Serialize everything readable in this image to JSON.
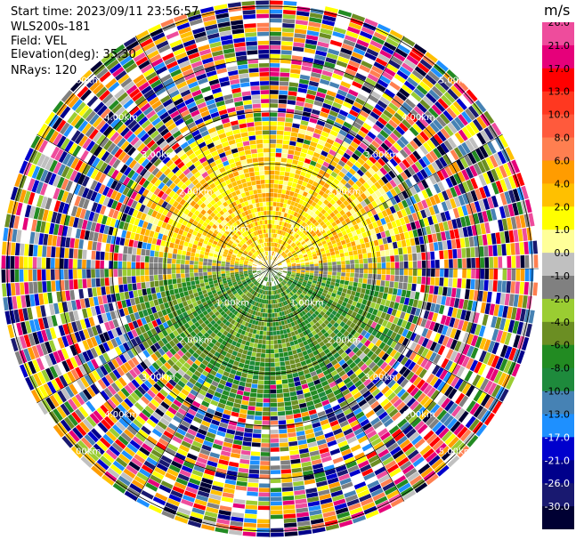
{
  "header": {
    "start_time": "Start time: 2023/09/11 23:56:57",
    "instrument": "WLS200s-181",
    "field": "Field: VEL",
    "elevation": "Elevation(deg): 35.30",
    "nrays": "NRays: 120"
  },
  "colorbar": {
    "unit": "m/s",
    "levels": [
      {
        "label": "26.0",
        "color": "#ee4c9c",
        "text_color": "#000000"
      },
      {
        "label": "21.0",
        "color": "#e6007a",
        "text_color": "#000000"
      },
      {
        "label": "17.0",
        "color": "#ff0000",
        "text_color": "#000000"
      },
      {
        "label": "13.0",
        "color": "#ff3820",
        "text_color": "#000000"
      },
      {
        "label": "10.0",
        "color": "#ff5a3c",
        "text_color": "#000000"
      },
      {
        "label": "8.0",
        "color": "#ff7f50",
        "text_color": "#000000"
      },
      {
        "label": "6.0",
        "color": "#ff9c00",
        "text_color": "#000000"
      },
      {
        "label": "4.0",
        "color": "#ffc000",
        "text_color": "#000000"
      },
      {
        "label": "2.0",
        "color": "#ffff00",
        "text_color": "#000000"
      },
      {
        "label": "1.0",
        "color": "#ffff99",
        "text_color": "#000000"
      },
      {
        "label": "0.0",
        "color": "#c0c0c0",
        "text_color": "#000000"
      },
      {
        "label": "-1.0",
        "color": "#808080",
        "text_color": "#000000"
      },
      {
        "label": "-2.0",
        "color": "#9acd32",
        "text_color": "#000000"
      },
      {
        "label": "-4.0",
        "color": "#6b8e23",
        "text_color": "#000000"
      },
      {
        "label": "-6.0",
        "color": "#228b22",
        "text_color": "#000000"
      },
      {
        "label": "-8.0",
        "color": "#1e8a3c",
        "text_color": "#000000"
      },
      {
        "label": "-10.0",
        "color": "#4682b4",
        "text_color": "#000000"
      },
      {
        "label": "-13.0",
        "color": "#1e90ff",
        "text_color": "#000000"
      },
      {
        "label": "-17.0",
        "color": "#0000cd",
        "text_color": "#ffffff"
      },
      {
        "label": "-21.0",
        "color": "#00008b",
        "text_color": "#ffffff"
      },
      {
        "label": "-26.0",
        "color": "#191970",
        "text_color": "#ffffff"
      },
      {
        "label": "-30.0",
        "color": "#000033",
        "text_color": "#ffffff"
      }
    ]
  },
  "range_rings": [
    "1.00km",
    "2.00km",
    "3.00km",
    "4.00km",
    "5.00km"
  ]
}
